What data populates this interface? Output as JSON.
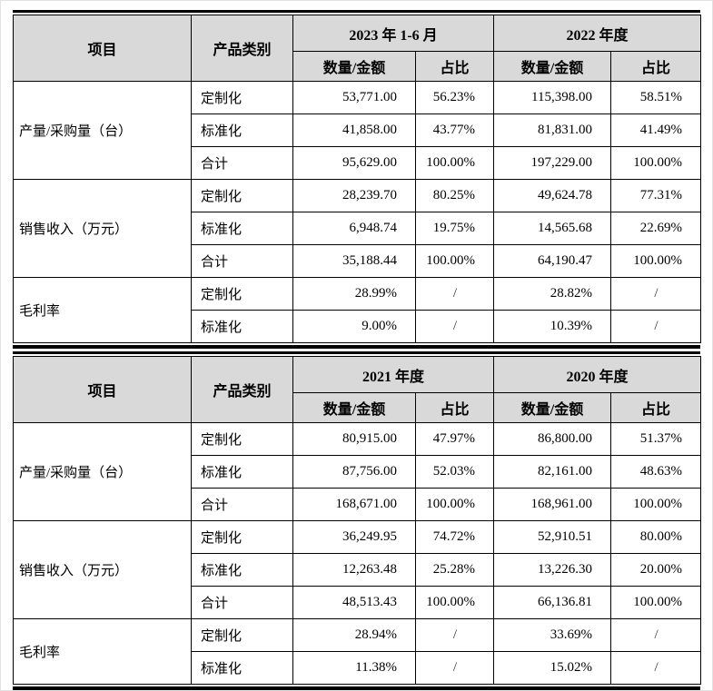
{
  "page": {
    "background": "#ffffff",
    "header_bg": "#d9d9d9",
    "grid_color": "#000000"
  },
  "document": {
    "tables": [
      {
        "header": {
          "item_label": "项目",
          "category_label": "产品类别",
          "periods": [
            {
              "label": "2023 年 1-6 月",
              "subcols": [
                "数量/金额",
                "占比"
              ]
            },
            {
              "label": "2022 年度",
              "subcols": [
                "数量/金额",
                "占比"
              ]
            }
          ]
        },
        "groups": [
          {
            "item": "产量/采购量（台）",
            "rows": [
              {
                "category": "定制化",
                "values": [
                  "53,771.00",
                  "56.23%",
                  "115,398.00",
                  "58.51%"
                ]
              },
              {
                "category": "标准化",
                "values": [
                  "41,858.00",
                  "43.77%",
                  "81,831.00",
                  "41.49%"
                ]
              },
              {
                "category": "合计",
                "values": [
                  "95,629.00",
                  "100.00%",
                  "197,229.00",
                  "100.00%"
                ]
              }
            ]
          },
          {
            "item": "销售收入（万元）",
            "rows": [
              {
                "category": "定制化",
                "values": [
                  "28,239.70",
                  "80.25%",
                  "49,624.78",
                  "77.31%"
                ]
              },
              {
                "category": "标准化",
                "values": [
                  "6,948.74",
                  "19.75%",
                  "14,565.68",
                  "22.69%"
                ]
              },
              {
                "category": "合计",
                "values": [
                  "35,188.44",
                  "100.00%",
                  "64,190.47",
                  "100.00%"
                ]
              }
            ]
          },
          {
            "item": "毛利率",
            "rows": [
              {
                "category": "定制化",
                "values": [
                  "28.99%",
                  "/",
                  "28.82%",
                  "/"
                ]
              },
              {
                "category": "标准化",
                "values": [
                  "9.00%",
                  "/",
                  "10.39%",
                  "/"
                ]
              }
            ]
          }
        ]
      },
      {
        "header": {
          "item_label": "项目",
          "category_label": "产品类别",
          "periods": [
            {
              "label": "2021 年度",
              "subcols": [
                "数量/金额",
                "占比"
              ]
            },
            {
              "label": "2020 年度",
              "subcols": [
                "数量/金额",
                "占比"
              ]
            }
          ]
        },
        "groups": [
          {
            "item": "产量/采购量（台）",
            "rows": [
              {
                "category": "定制化",
                "values": [
                  "80,915.00",
                  "47.97%",
                  "86,800.00",
                  "51.37%"
                ]
              },
              {
                "category": "标准化",
                "values": [
                  "87,756.00",
                  "52.03%",
                  "82,161.00",
                  "48.63%"
                ]
              },
              {
                "category": "合计",
                "values": [
                  "168,671.00",
                  "100.00%",
                  "168,961.00",
                  "100.00%"
                ]
              }
            ]
          },
          {
            "item": "销售收入（万元）",
            "rows": [
              {
                "category": "定制化",
                "values": [
                  "36,249.95",
                  "74.72%",
                  "52,910.51",
                  "80.00%"
                ]
              },
              {
                "category": "标准化",
                "values": [
                  "12,263.48",
                  "25.28%",
                  "13,226.30",
                  "20.00%"
                ]
              },
              {
                "category": "合计",
                "values": [
                  "48,513.43",
                  "100.00%",
                  "66,136.81",
                  "100.00%"
                ]
              }
            ]
          },
          {
            "item": "毛利率",
            "rows": [
              {
                "category": "定制化",
                "values": [
                  "28.94%",
                  "/",
                  "33.69%",
                  "/"
                ]
              },
              {
                "category": "标准化",
                "values": [
                  "11.38%",
                  "/",
                  "15.02%",
                  "/"
                ]
              }
            ]
          }
        ]
      }
    ]
  }
}
